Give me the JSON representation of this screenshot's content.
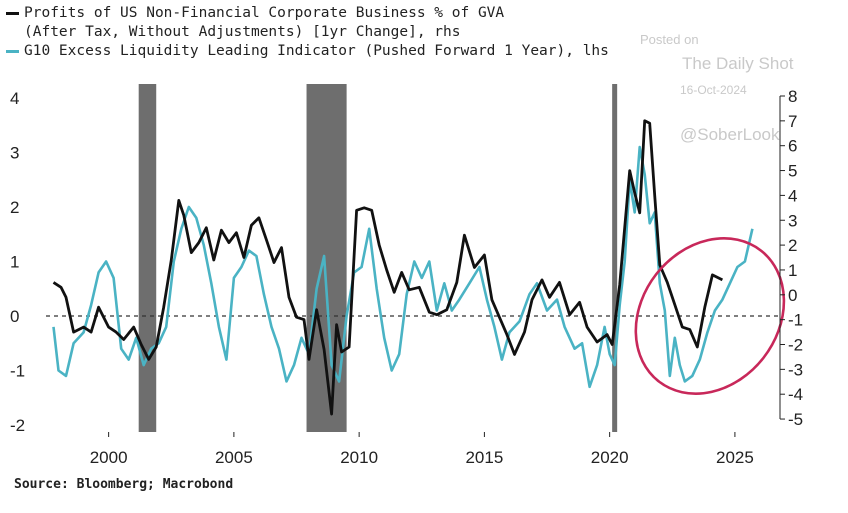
{
  "legend": {
    "line1": "Profits of US Non-Financial Corporate Business % of GVA",
    "line2": "(After Tax, Without Adjustments) [1yr Change], rhs",
    "line3": "G10 Excess Liquidity Leading Indicator (Pushed Forward 1 Year), lhs"
  },
  "watermark": {
    "posted": "Posted on",
    "site": "The Daily Shot",
    "date": "16-Oct-2024",
    "handle": "@SoberLook"
  },
  "source": "Source: Bloomberg; Macrobond",
  "colors": {
    "profits": "#111111",
    "liquidity": "#4ab3c4",
    "recession": "#6e6e6e",
    "highlight": "#c8285a"
  },
  "chart_data": {
    "type": "line",
    "x_range": [
      1997.5,
      2026.8
    ],
    "x_ticks": [
      2000,
      2005,
      2010,
      2015,
      2020,
      2025
    ],
    "left_axis": {
      "range": [
        -2.2,
        4.3
      ],
      "ticks": [
        -2,
        -1,
        0,
        1,
        2,
        3,
        4
      ]
    },
    "right_axis": {
      "range": [
        -5.45,
        8.2
      ],
      "ticks": [
        -5,
        -4,
        -3,
        -2,
        -1,
        0,
        1,
        2,
        3,
        4,
        5,
        6,
        7,
        8
      ]
    },
    "zero_line": {
      "style": "dashed",
      "value": 0
    },
    "recession_bands": [
      [
        2001.2,
        2001.9
      ],
      [
        2007.9,
        2009.5
      ],
      [
        2020.1,
        2020.3
      ]
    ],
    "series": [
      {
        "axis": "rhs",
        "points": [
          [
            1997.8,
            0.5
          ],
          [
            1998.1,
            0.3
          ],
          [
            1998.3,
            -0.1
          ],
          [
            1998.6,
            -1.5
          ],
          [
            1999.0,
            -1.3
          ],
          [
            1999.3,
            -1.5
          ],
          [
            1999.6,
            -0.5
          ],
          [
            2000.0,
            -1.3
          ],
          [
            2000.3,
            -1.5
          ],
          [
            2000.6,
            -1.8
          ],
          [
            2001.0,
            -1.3
          ],
          [
            2001.3,
            -2.0
          ],
          [
            2001.6,
            -2.6
          ],
          [
            2001.9,
            -2.1
          ],
          [
            2002.2,
            -0.5
          ],
          [
            2002.5,
            1.4
          ],
          [
            2002.8,
            3.8
          ],
          [
            2003.0,
            3.2
          ],
          [
            2003.3,
            1.7
          ],
          [
            2003.6,
            2.1
          ],
          [
            2003.9,
            2.7
          ],
          [
            2004.2,
            1.4
          ],
          [
            2004.5,
            2.6
          ],
          [
            2004.8,
            2.1
          ],
          [
            2005.1,
            2.5
          ],
          [
            2005.4,
            1.5
          ],
          [
            2005.7,
            2.8
          ],
          [
            2006.0,
            3.1
          ],
          [
            2006.3,
            2.2
          ],
          [
            2006.6,
            1.3
          ],
          [
            2006.9,
            1.9
          ],
          [
            2007.2,
            -0.1
          ],
          [
            2007.5,
            -0.9
          ],
          [
            2007.8,
            -1.0
          ],
          [
            2008.0,
            -2.6
          ],
          [
            2008.3,
            -0.6
          ],
          [
            2008.6,
            -2.2
          ],
          [
            2008.9,
            -4.8
          ],
          [
            2009.1,
            -1.2
          ],
          [
            2009.3,
            -2.3
          ],
          [
            2009.6,
            -2.1
          ],
          [
            2009.9,
            3.4
          ],
          [
            2010.2,
            3.5
          ],
          [
            2010.5,
            3.4
          ],
          [
            2010.8,
            2.0
          ],
          [
            2011.1,
            1.0
          ],
          [
            2011.4,
            0.1
          ],
          [
            2011.7,
            0.9
          ],
          [
            2012.0,
            0.2
          ],
          [
            2012.4,
            0.3
          ],
          [
            2012.8,
            -0.7
          ],
          [
            2013.1,
            -0.8
          ],
          [
            2013.5,
            -0.6
          ],
          [
            2013.9,
            0.5
          ],
          [
            2014.2,
            2.4
          ],
          [
            2014.6,
            1.1
          ],
          [
            2015.0,
            1.6
          ],
          [
            2015.3,
            -0.2
          ],
          [
            2015.6,
            -0.9
          ],
          [
            2015.9,
            -1.6
          ],
          [
            2016.2,
            -2.4
          ],
          [
            2016.6,
            -1.5
          ],
          [
            2016.9,
            -0.2
          ],
          [
            2017.3,
            0.6
          ],
          [
            2017.6,
            -0.1
          ],
          [
            2018.0,
            0.5
          ],
          [
            2018.4,
            -0.8
          ],
          [
            2018.8,
            -0.3
          ],
          [
            2019.1,
            -1.3
          ],
          [
            2019.5,
            -1.9
          ],
          [
            2019.9,
            -1.6
          ],
          [
            2020.1,
            -2.0
          ],
          [
            2020.4,
            0.4
          ],
          [
            2020.8,
            5.0
          ],
          [
            2021.0,
            4.1
          ],
          [
            2021.2,
            3.3
          ],
          [
            2021.4,
            7.0
          ],
          [
            2021.6,
            6.9
          ],
          [
            2021.8,
            4.0
          ],
          [
            2022.0,
            1.2
          ],
          [
            2022.3,
            0.5
          ],
          [
            2022.6,
            -0.4
          ],
          [
            2022.9,
            -1.3
          ],
          [
            2023.2,
            -1.4
          ],
          [
            2023.5,
            -2.1
          ],
          [
            2023.8,
            -0.5
          ],
          [
            2024.1,
            0.8
          ],
          [
            2024.5,
            0.6
          ]
        ]
      },
      {
        "axis": "lhs",
        "points": [
          [
            1997.8,
            -0.2
          ],
          [
            1998.0,
            -1.0
          ],
          [
            1998.3,
            -1.1
          ],
          [
            1998.6,
            -0.5
          ],
          [
            1999.0,
            -0.3
          ],
          [
            1999.3,
            0.2
          ],
          [
            1999.6,
            0.8
          ],
          [
            1999.9,
            1.0
          ],
          [
            2000.2,
            0.7
          ],
          [
            2000.5,
            -0.6
          ],
          [
            2000.8,
            -0.8
          ],
          [
            2001.1,
            -0.4
          ],
          [
            2001.4,
            -0.9
          ],
          [
            2001.7,
            -0.6
          ],
          [
            2002.0,
            -0.5
          ],
          [
            2002.3,
            -0.2
          ],
          [
            2002.6,
            1.0
          ],
          [
            2002.9,
            1.6
          ],
          [
            2003.2,
            2.0
          ],
          [
            2003.5,
            1.8
          ],
          [
            2003.8,
            1.3
          ],
          [
            2004.1,
            0.6
          ],
          [
            2004.4,
            -0.2
          ],
          [
            2004.7,
            -0.8
          ],
          [
            2005.0,
            0.7
          ],
          [
            2005.3,
            0.9
          ],
          [
            2005.6,
            1.2
          ],
          [
            2005.9,
            1.1
          ],
          [
            2006.2,
            0.4
          ],
          [
            2006.5,
            -0.2
          ],
          [
            2006.8,
            -0.6
          ],
          [
            2007.1,
            -1.2
          ],
          [
            2007.4,
            -0.9
          ],
          [
            2007.7,
            -0.4
          ],
          [
            2008.0,
            -0.7
          ],
          [
            2008.3,
            0.5
          ],
          [
            2008.6,
            1.1
          ],
          [
            2008.9,
            -0.9
          ],
          [
            2009.2,
            -1.2
          ],
          [
            2009.5,
            0.0
          ],
          [
            2009.8,
            0.8
          ],
          [
            2010.1,
            0.9
          ],
          [
            2010.4,
            1.6
          ],
          [
            2010.7,
            0.5
          ],
          [
            2011.0,
            -0.4
          ],
          [
            2011.3,
            -1.0
          ],
          [
            2011.6,
            -0.7
          ],
          [
            2011.9,
            0.4
          ],
          [
            2012.2,
            1.0
          ],
          [
            2012.5,
            0.7
          ],
          [
            2012.8,
            1.0
          ],
          [
            2013.1,
            0.1
          ],
          [
            2013.4,
            0.6
          ],
          [
            2013.7,
            0.1
          ],
          [
            2014.0,
            0.3
          ],
          [
            2014.4,
            0.6
          ],
          [
            2014.8,
            0.9
          ],
          [
            2015.1,
            0.3
          ],
          [
            2015.4,
            -0.2
          ],
          [
            2015.7,
            -0.8
          ],
          [
            2016.0,
            -0.3
          ],
          [
            2016.4,
            -0.1
          ],
          [
            2016.8,
            0.4
          ],
          [
            2017.1,
            0.6
          ],
          [
            2017.5,
            0.1
          ],
          [
            2017.9,
            0.3
          ],
          [
            2018.2,
            -0.2
          ],
          [
            2018.6,
            -0.6
          ],
          [
            2018.9,
            -0.5
          ],
          [
            2019.2,
            -1.3
          ],
          [
            2019.5,
            -0.9
          ],
          [
            2019.8,
            -0.2
          ],
          [
            2020.0,
            -0.7
          ],
          [
            2020.2,
            -0.9
          ],
          [
            2020.4,
            0.2
          ],
          [
            2020.6,
            1.0
          ],
          [
            2020.8,
            2.5
          ],
          [
            2021.0,
            1.9
          ],
          [
            2021.2,
            3.1
          ],
          [
            2021.4,
            2.6
          ],
          [
            2021.6,
            1.7
          ],
          [
            2021.8,
            1.9
          ],
          [
            2022.0,
            0.6
          ],
          [
            2022.2,
            0.1
          ],
          [
            2022.4,
            -1.1
          ],
          [
            2022.6,
            -0.4
          ],
          [
            2022.8,
            -0.9
          ],
          [
            2023.0,
            -1.2
          ],
          [
            2023.3,
            -1.1
          ],
          [
            2023.6,
            -0.8
          ],
          [
            2023.9,
            -0.3
          ],
          [
            2024.2,
            0.1
          ],
          [
            2024.5,
            0.3
          ],
          [
            2024.8,
            0.6
          ],
          [
            2025.1,
            0.9
          ],
          [
            2025.4,
            1.0
          ],
          [
            2025.7,
            1.6
          ]
        ]
      }
    ],
    "highlight": {
      "shape": "ellipse",
      "center": [
        2024.0,
        0.0
      ],
      "axis": "lhs"
    }
  }
}
